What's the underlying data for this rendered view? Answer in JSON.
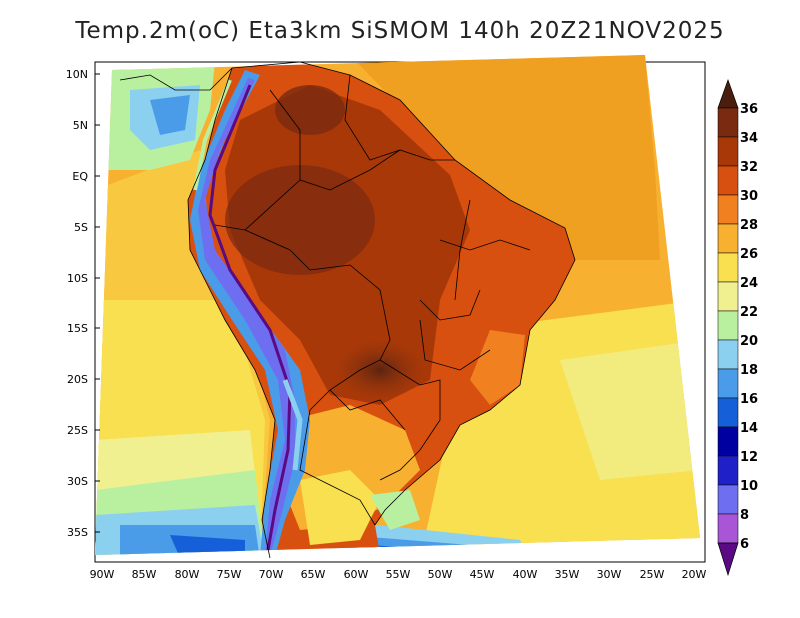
{
  "title": "Temp.2m(oC) Eta3km SiSMOM 140h 20Z21NOV2025",
  "lat_labels": [
    "10N",
    "5N",
    "EQ",
    "5S",
    "10S",
    "15S",
    "20S",
    "25S",
    "30S",
    "35S"
  ],
  "lon_labels": [
    "90W",
    "85W",
    "80W",
    "75W",
    "70W",
    "65W",
    "60W",
    "55W",
    "50W",
    "45W",
    "40W",
    "35W",
    "30W",
    "25W",
    "20W"
  ],
  "colorbar": {
    "labels": [
      "6",
      "8",
      "10",
      "12",
      "14",
      "16",
      "18",
      "20",
      "22",
      "24",
      "26",
      "28",
      "30",
      "32",
      "34",
      "36"
    ],
    "colors": [
      "#5a0a82",
      "#8c1fa8",
      "#a855d8",
      "#6e6ef0",
      "#2020c8",
      "#0000a0",
      "#1560d8",
      "#4a9ce8",
      "#8cd0f0",
      "#b8f0a0",
      "#f0f090",
      "#f8e050",
      "#f8b030",
      "#f08020",
      "#d85010",
      "#a83808",
      "#7a2a10",
      "#4a1e0e"
    ]
  }
}
